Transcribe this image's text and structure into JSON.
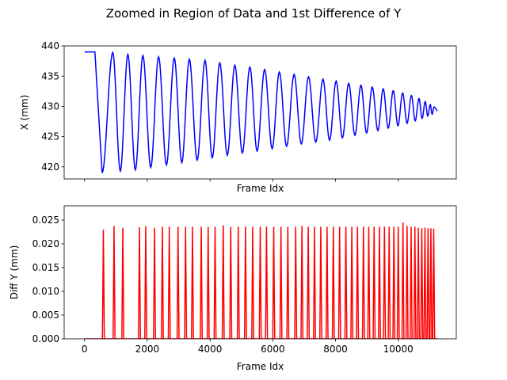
{
  "figure": {
    "title": "Zoomed in Region of Data and 1st Difference of Y"
  },
  "chart_data": [
    {
      "type": "line",
      "xlabel": "Frame Idx",
      "ylabel": "X (mm)",
      "xlim": [
        -650,
        11850
      ],
      "ylim": [
        418,
        440
      ],
      "xticks": [
        0,
        2000,
        4000,
        6000,
        8000,
        10000
      ],
      "xtick_labels_shown": false,
      "yticks": [
        420,
        425,
        430,
        435,
        440
      ],
      "ytick_labels": [
        "420",
        "425",
        "430",
        "435",
        "440"
      ],
      "grid": false,
      "series": [
        {
          "color": "#0000ff",
          "signal": {
            "flat_level": 439.0,
            "flat_until": 330,
            "first_min": {
              "x": 560,
              "y": 419.0
            },
            "final_level": 429.3,
            "end_x": 11250,
            "peaks": [
              [
                900,
                438.9
              ],
              [
                1380,
                438.6
              ],
              [
                1860,
                438.4
              ],
              [
                2360,
                438.2
              ],
              [
                2860,
                438.0
              ],
              [
                3340,
                437.8
              ],
              [
                3840,
                437.6
              ],
              [
                4310,
                437.2
              ],
              [
                4790,
                436.8
              ],
              [
                5270,
                436.5
              ],
              [
                5740,
                436.1
              ],
              [
                6210,
                435.7
              ],
              [
                6680,
                435.3
              ],
              [
                7140,
                434.9
              ],
              [
                7600,
                434.5
              ],
              [
                8020,
                434.2
              ],
              [
                8420,
                433.8
              ],
              [
                8810,
                433.5
              ],
              [
                9170,
                433.2
              ],
              [
                9520,
                432.9
              ],
              [
                9840,
                432.6
              ],
              [
                10140,
                432.2
              ],
              [
                10420,
                431.8
              ],
              [
                10660,
                431.3
              ],
              [
                10860,
                430.8
              ],
              [
                11020,
                430.3
              ],
              [
                11140,
                429.9
              ]
            ],
            "troughs": [
              [
                1140,
                419.3
              ],
              [
                1620,
                419.5
              ],
              [
                2110,
                419.9
              ],
              [
                2610,
                420.3
              ],
              [
                3100,
                420.7
              ],
              [
                3590,
                421.1
              ],
              [
                4070,
                421.5
              ],
              [
                4550,
                421.9
              ],
              [
                5030,
                422.3
              ],
              [
                5500,
                422.6
              ],
              [
                5980,
                423.0
              ],
              [
                6440,
                423.4
              ],
              [
                6910,
                423.8
              ],
              [
                7370,
                424.1
              ],
              [
                7810,
                424.4
              ],
              [
                8220,
                424.8
              ],
              [
                8620,
                425.2
              ],
              [
                8990,
                425.6
              ],
              [
                9350,
                426.0
              ],
              [
                9680,
                426.4
              ],
              [
                9990,
                426.8
              ],
              [
                10280,
                427.2
              ],
              [
                10540,
                427.6
              ],
              [
                10760,
                428.0
              ],
              [
                10940,
                428.4
              ],
              [
                11080,
                428.7
              ]
            ]
          }
        }
      ]
    },
    {
      "type": "line",
      "xlabel": "Frame Idx",
      "ylabel": "Diff Y (mm)",
      "xlim": [
        -650,
        11850
      ],
      "ylim": [
        0,
        0.028
      ],
      "xticks": [
        0,
        2000,
        4000,
        6000,
        8000,
        10000
      ],
      "xtick_labels": [
        "0",
        "2000",
        "4000",
        "6000",
        "8000",
        "10000"
      ],
      "yticks": [
        0.0,
        0.005,
        0.01,
        0.015,
        0.02,
        0.025
      ],
      "ytick_labels": [
        "0.000",
        "0.005",
        "0.010",
        "0.015",
        "0.020",
        "0.025"
      ],
      "grid": false,
      "series": [
        {
          "color": "#ff0000",
          "spikes": [
            [
              600,
              0.023
            ],
            [
              940,
              0.0238
            ],
            [
              1220,
              0.0234
            ],
            [
              1750,
              0.0235
            ],
            [
              1950,
              0.0237
            ],
            [
              2230,
              0.0234
            ],
            [
              2480,
              0.0236
            ],
            [
              2700,
              0.0236
            ],
            [
              2980,
              0.0236
            ],
            [
              3220,
              0.0236
            ],
            [
              3440,
              0.0236
            ],
            [
              3720,
              0.0236
            ],
            [
              3940,
              0.0236
            ],
            [
              4160,
              0.0236
            ],
            [
              4420,
              0.0239
            ],
            [
              4660,
              0.0236
            ],
            [
              4900,
              0.0236
            ],
            [
              5130,
              0.0236
            ],
            [
              5360,
              0.0236
            ],
            [
              5600,
              0.0236
            ],
            [
              5800,
              0.0236
            ],
            [
              6030,
              0.0236
            ],
            [
              6260,
              0.0236
            ],
            [
              6480,
              0.0236
            ],
            [
              6730,
              0.0236
            ],
            [
              6930,
              0.0238
            ],
            [
              7130,
              0.0236
            ],
            [
              7330,
              0.0236
            ],
            [
              7530,
              0.0236
            ],
            [
              7730,
              0.0236
            ],
            [
              7930,
              0.0236
            ],
            [
              8130,
              0.0236
            ],
            [
              8330,
              0.0236
            ],
            [
              8520,
              0.0236
            ],
            [
              8700,
              0.0236
            ],
            [
              8890,
              0.0236
            ],
            [
              9060,
              0.0236
            ],
            [
              9230,
              0.0236
            ],
            [
              9400,
              0.0236
            ],
            [
              9560,
              0.0236
            ],
            [
              9710,
              0.0236
            ],
            [
              9860,
              0.0236
            ],
            [
              10000,
              0.0236
            ],
            [
              10150,
              0.0245
            ],
            [
              10280,
              0.0238
            ],
            [
              10410,
              0.0236
            ],
            [
              10530,
              0.0236
            ],
            [
              10640,
              0.0234
            ],
            [
              10750,
              0.0233
            ],
            [
              10850,
              0.0234
            ],
            [
              10950,
              0.0233
            ],
            [
              11040,
              0.0233
            ],
            [
              11130,
              0.0232
            ]
          ]
        }
      ]
    }
  ]
}
